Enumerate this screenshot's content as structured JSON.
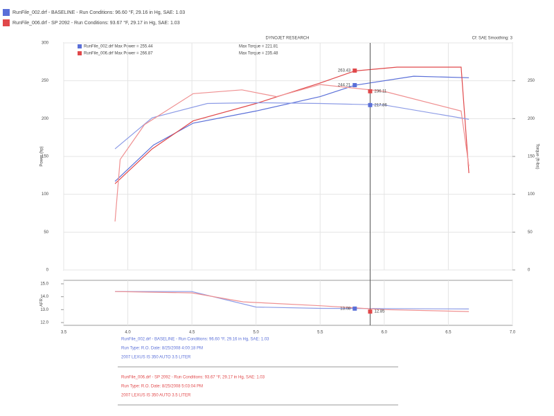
{
  "chart_data": {
    "type": "line",
    "runs": [
      {
        "name": "RunFile_002.drf - BASELINE - Run Conditions: 96.60 °F, 29.16 in Hg, SAE: 1.03",
        "color": "#5a6fd8",
        "lines": [
          "Run Type: R.O. Date: 8/25/2008 4:00:18 PM",
          "2007 LEXUS IS 350 AUTO 3.5 LITER"
        ]
      },
      {
        "name": "RunFile_006.drf - SP 2092 - Run Conditions: 93.67 °F, 29.17 in Hg, SAE: 1.03",
        "color": "#e0484a",
        "lines": [
          "Run Type: R.O. Date: 8/25/2008 5:03:04 PM",
          "2007 LEXUS IS 350 AUTO 3.5 LITER"
        ]
      }
    ],
    "title": "DYNOJET RESEARCH",
    "subtitle": "Cf: SAE Smoothing: 3",
    "maxima": [
      {
        "power_label": "RunFile_002.drf Max Power = 255.44",
        "torque_label": "Max Torque = 221.81",
        "color": "#5a6fd8"
      },
      {
        "power_label": "RunFile_006.drf Max Power = 266.87",
        "torque_label": "Max Torque = 235.48",
        "color": "#e0484a"
      }
    ],
    "ylabel": "Power (hp)",
    "y2label": "Torque (ft-lbs)",
    "lower_ylabel": "AFR",
    "xlim": [
      3.5,
      7.0
    ],
    "xticks": [
      {
        "value": 3.5,
        "label": "3.5"
      },
      {
        "value": 4,
        "label": "4.0"
      },
      {
        "value": 4.5,
        "label": "4.5"
      },
      {
        "value": 5,
        "label": "5.0"
      },
      {
        "value": 5.5,
        "label": "5.5"
      },
      {
        "value": 6,
        "label": "6.0"
      },
      {
        "value": 6.5,
        "label": "6.5"
      },
      {
        "value": 7,
        "label": "7.0"
      }
    ],
    "ylim": [
      0,
      300
    ],
    "yticks": [
      0,
      50,
      100,
      150,
      200,
      250,
      300
    ],
    "y2lim": [
      0,
      300
    ],
    "y2ticks": [
      0,
      50,
      100,
      150,
      200,
      250
    ],
    "lower_ylim": [
      12,
      15
    ],
    "lower_yticks": [
      {
        "value": 12,
        "label": "12.0"
      },
      {
        "value": 13,
        "label": "13.0"
      },
      {
        "value": 14,
        "label": "14.0"
      },
      {
        "value": 15,
        "label": "15.0"
      }
    ],
    "grid": true,
    "cursor_x": 5.89,
    "series": [
      {
        "name": "Baseline Power",
        "color": "#5a6fd8",
        "axis": "y",
        "x": [
          3.9,
          4.2,
          4.51,
          5.0,
          5.5,
          5.77,
          6.23,
          6.66
        ],
        "values": [
          117,
          165,
          194,
          210,
          229,
          244,
          256,
          254
        ]
      },
      {
        "name": "SP 2092 Power",
        "color": "#e0484a",
        "axis": "y",
        "x": [
          3.9,
          4.19,
          4.51,
          5.0,
          5.5,
          5.77,
          6.1,
          6.6,
          6.66
        ],
        "values": [
          114,
          160,
          197,
          220,
          247,
          263,
          268,
          268,
          128
        ]
      },
      {
        "name": "Baseline Torque",
        "color": "#8c9be6",
        "axis": "y2",
        "x": [
          3.9,
          4.19,
          4.62,
          5.0,
          5.5,
          6.0,
          6.66
        ],
        "values": [
          160,
          201,
          220,
          221,
          220,
          218,
          199
        ]
      },
      {
        "name": "SP 2092 Torque",
        "color": "#ef8f90",
        "axis": "y2",
        "x": [
          3.9,
          3.94,
          4.13,
          4.51,
          4.89,
          5.16,
          5.5,
          6.0,
          6.6,
          6.66
        ],
        "values": [
          64,
          146,
          192,
          233,
          238,
          229,
          245,
          236,
          210,
          137
        ]
      },
      {
        "name": "Baseline AFR",
        "color": "#8c9be6",
        "axis": "lower",
        "x": [
          3.9,
          4.5,
          5.0,
          5.5,
          6.0,
          6.66
        ],
        "values": [
          14.4,
          14.4,
          13.2,
          13.1,
          13.08,
          13.05
        ]
      },
      {
        "name": "SP 2092 AFR",
        "color": "#ef8f90",
        "axis": "lower",
        "x": [
          3.9,
          4.5,
          4.9,
          5.5,
          6.0,
          6.66
        ],
        "values": [
          14.4,
          14.3,
          13.6,
          13.3,
          13.0,
          12.85
        ]
      }
    ],
    "readouts": [
      {
        "value": 263.43,
        "x": 5.77,
        "axis": "y",
        "color": "#e0484a"
      },
      {
        "value": 244.21,
        "x": 5.77,
        "axis": "y",
        "color": "#5a6fd8"
      },
      {
        "value": 236.11,
        "x": 5.89,
        "axis": "y2",
        "color": "#e0484a"
      },
      {
        "value": 217.86,
        "x": 5.89,
        "axis": "y2",
        "color": "#5a6fd8"
      },
      {
        "value": 13.08,
        "x": 5.77,
        "axis": "lower",
        "color": "#5a6fd8"
      },
      {
        "value": 12.85,
        "x": 5.89,
        "axis": "lower",
        "color": "#e0484a"
      }
    ]
  }
}
